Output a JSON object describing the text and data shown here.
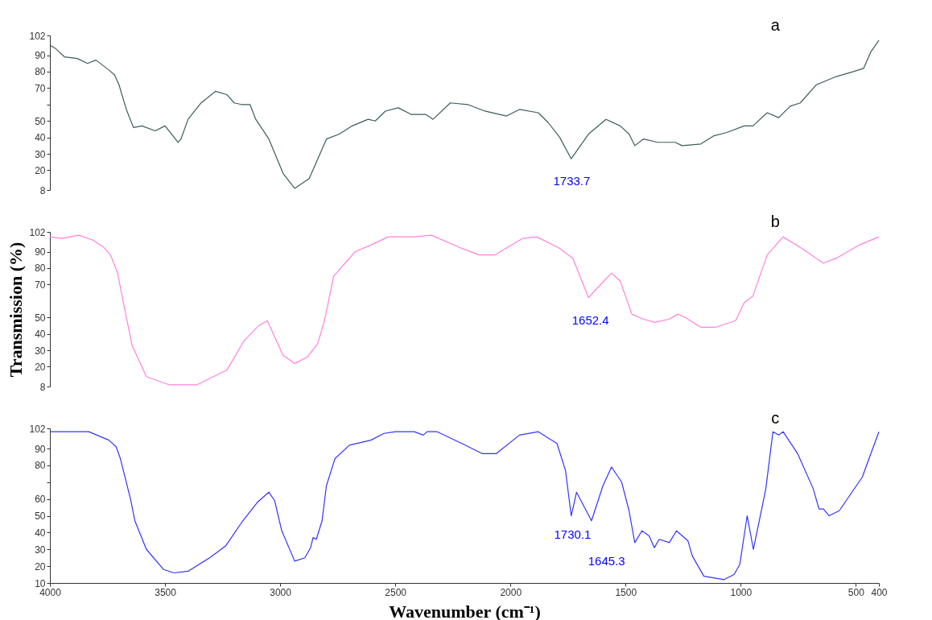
{
  "chart_data": [
    {
      "type": "line",
      "xlim": [
        4000,
        400
      ],
      "ylim": [
        8,
        102
      ],
      "yticks": [
        8,
        20,
        30,
        40,
        50,
        {
          "value": 60,
          "label": null
        },
        70,
        80,
        90,
        102
      ],
      "tick_labels": "y",
      "grid": false,
      "series": [
        {
          "name": "a",
          "color": "#3d5c5c",
          "x": [
            4000,
            3975,
            3937,
            3881,
            3837,
            3800,
            3744,
            3719,
            3700,
            3668,
            3637,
            3600,
            3543,
            3500,
            3443,
            3431,
            3400,
            3343,
            3281,
            3231,
            3200,
            3168,
            3131,
            3106,
            3049,
            2987,
            2937,
            2874,
            2799,
            2743,
            2687,
            2618,
            2587,
            2543,
            2487,
            2431,
            2368,
            2336,
            2261,
            2186,
            2111,
            2017,
            1961,
            1879,
            1836,
            1786,
            1736,
            1661,
            1585,
            1523,
            1485,
            1460,
            1423,
            1360,
            1285,
            1254,
            1173,
            1116,
            1060,
            985,
            947,
            885,
            835,
            785,
            741,
            672,
            585,
            510,
            466,
            435,
            400
          ],
          "values": [
            96,
            94,
            89,
            88,
            85,
            87,
            81,
            78,
            72,
            57,
            46,
            47,
            44,
            47,
            37,
            39,
            51,
            61,
            68,
            66,
            61,
            60,
            60,
            51,
            39,
            18,
            9,
            15,
            39,
            42,
            47,
            51,
            50,
            56,
            58,
            54,
            54,
            51,
            61,
            60,
            56,
            53,
            57,
            55,
            49,
            40,
            27,
            42,
            51,
            47,
            42,
            35,
            39,
            37,
            37,
            35,
            36,
            41,
            43,
            47,
            47,
            55,
            52,
            59,
            61,
            72,
            77,
            80,
            82,
            92,
            99
          ]
        }
      ],
      "annotations": [
        {
          "text": "1733.7",
          "x": 1733.7,
          "y": 27
        }
      ]
    },
    {
      "type": "line",
      "xlim": [
        4000,
        400
      ],
      "ylim": [
        8,
        102
      ],
      "yticks": [
        8,
        20,
        30,
        40,
        50,
        70,
        80,
        90,
        102
      ],
      "tick_labels": "y",
      "grid": false,
      "ylabel": "Transmission (%)",
      "series": [
        {
          "name": "b",
          "color": "#ff80df",
          "x": [
            4000,
            3950,
            3875,
            3812,
            3769,
            3737,
            3706,
            3681,
            3643,
            3581,
            3481,
            3362,
            3231,
            3156,
            3093,
            3056,
            2987,
            2937,
            2881,
            2837,
            2806,
            2768,
            2674,
            2606,
            2531,
            2418,
            2343,
            2211,
            2136,
            2067,
            1948,
            1886,
            1786,
            1729,
            1661,
            1629,
            1561,
            1523,
            1473,
            1423,
            1373,
            1310,
            1273,
            1241,
            1173,
            1110,
            1022,
            985,
            947,
            885,
            816,
            735,
            641,
            585,
            485,
            400
          ],
          "values": [
            99,
            98,
            100,
            97,
            93,
            88,
            77,
            59,
            33,
            14,
            9,
            9,
            18,
            36,
            45,
            48,
            27,
            22,
            26,
            34,
            49,
            75,
            90,
            94,
            99,
            99,
            100,
            92,
            88,
            88,
            98,
            99,
            92,
            86,
            62,
            67,
            77,
            72,
            52,
            49,
            47,
            49,
            52,
            50,
            44,
            44,
            48,
            59,
            63,
            88,
            99,
            92,
            83,
            86,
            94,
            99
          ]
        }
      ],
      "annotations": [
        {
          "text": "1652.4",
          "x": 1652.4,
          "y": 62
        }
      ]
    },
    {
      "type": "line",
      "xlim": [
        4000,
        400
      ],
      "ylim": [
        10,
        102
      ],
      "xticks": [
        4000,
        3500,
        3000,
        2500,
        2000,
        1500,
        1000,
        500,
        400
      ],
      "yticks": [
        10,
        20,
        30,
        40,
        50,
        60,
        {
          "value": 70,
          "label": null
        },
        80,
        90,
        102
      ],
      "grid": false,
      "xlabel": "Wavenumber (cm⁻¹)",
      "series": [
        {
          "name": "c",
          "color": "#3333ff",
          "x": [
            4000,
            3887,
            3831,
            3744,
            3712,
            3694,
            3650,
            3631,
            3581,
            3506,
            3462,
            3400,
            3306,
            3237,
            3162,
            3099,
            3049,
            3024,
            2993,
            2937,
            2893,
            2868,
            2857,
            2843,
            2818,
            2799,
            2762,
            2699,
            2606,
            2549,
            2499,
            2418,
            2378,
            2362,
            2318,
            2211,
            2123,
            2061,
            1961,
            1879,
            1798,
            1761,
            1736,
            1713,
            1648,
            1598,
            1561,
            1517,
            1485,
            1460,
            1429,
            1398,
            1375,
            1354,
            1310,
            1279,
            1229,
            1210,
            1160,
            1072,
            1029,
            1004,
            972,
            945,
            891,
            860,
            835,
            816,
            753,
            685,
            660,
            641,
            616,
            572,
            472,
            400
          ],
          "values": [
            100,
            100,
            100,
            95,
            91,
            84,
            60,
            47,
            30,
            18,
            16,
            17,
            25,
            32,
            47,
            58,
            64,
            59,
            41,
            23,
            25,
            31,
            37,
            36,
            47,
            68,
            84,
            92,
            95,
            99,
            100,
            100,
            98,
            100,
            100,
            93,
            87,
            87,
            98,
            100,
            93,
            77,
            50,
            64,
            47,
            68,
            79,
            70,
            53,
            34,
            41,
            38,
            31,
            36,
            34,
            41,
            35,
            26,
            14,
            12,
            15,
            21,
            50,
            30,
            66,
            100,
            98,
            100,
            87,
            66,
            54,
            54,
            50,
            53,
            73,
            100
          ]
        }
      ],
      "annotations": [
        {
          "text": "1730.1",
          "x": 1730.1,
          "y": 52
        },
        {
          "text": "1645.3",
          "x": 1645.3,
          "y": 47
        }
      ]
    }
  ]
}
